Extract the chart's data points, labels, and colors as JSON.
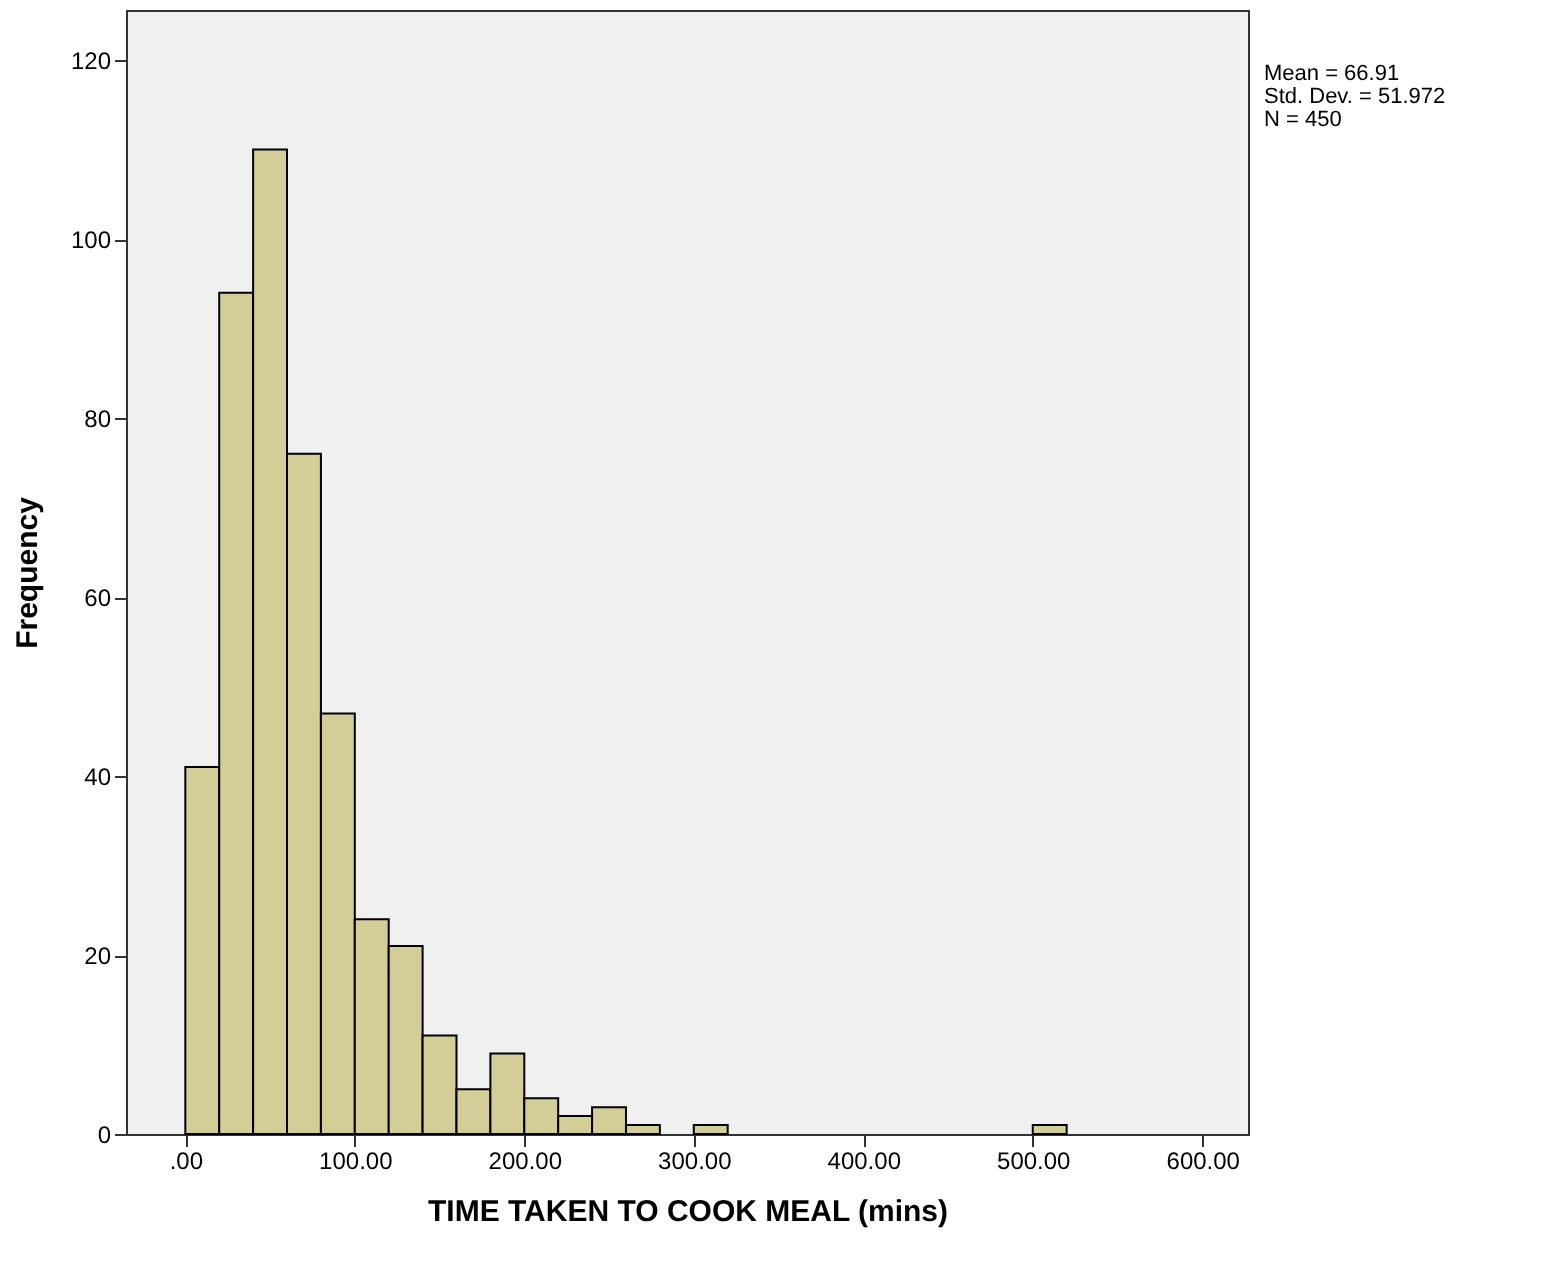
{
  "chart_data": {
    "type": "histogram",
    "xlabel": "TIME TAKEN TO COOK MEAL (mins)",
    "ylabel": "Frequency",
    "bins": [
      0,
      20,
      40,
      60,
      80,
      100,
      120,
      140,
      160,
      180,
      200,
      220,
      240,
      260,
      280,
      300,
      320,
      340,
      360,
      380,
      400,
      420,
      440,
      460,
      480,
      500,
      520
    ],
    "values": [
      41,
      94,
      110,
      76,
      47,
      24,
      21,
      11,
      5,
      9,
      4,
      2,
      3,
      1,
      0,
      1,
      0,
      0,
      0,
      0,
      0,
      0,
      0,
      0,
      0,
      1
    ],
    "color": "#d3ce97",
    "xlim": [
      -35,
      627
    ],
    "xticks": [
      {
        "value": 0,
        "label": ".00"
      },
      {
        "value": 100,
        "label": "100.00"
      },
      {
        "value": 200,
        "label": "200.00"
      },
      {
        "value": 300,
        "label": "300.00"
      },
      {
        "value": 400,
        "label": "400.00"
      },
      {
        "value": 500,
        "label": "500.00"
      },
      {
        "value": 600,
        "label": "600.00"
      }
    ],
    "ylim": [
      0,
      125.6
    ],
    "yticks": [
      0,
      20,
      40,
      60,
      80,
      100,
      120
    ],
    "grid": false,
    "annotations": [
      "Mean = 66.91",
      "Std. Dev. = 51.972",
      "N = 450"
    ]
  }
}
